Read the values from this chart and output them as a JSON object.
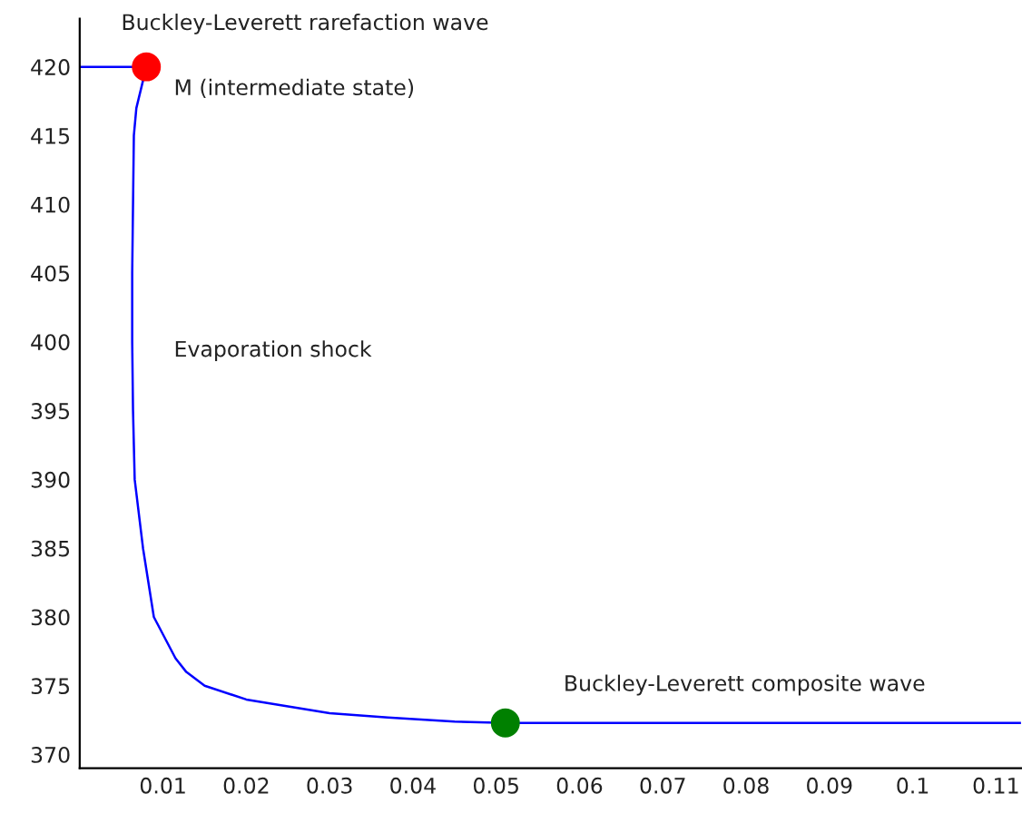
{
  "chart_data": {
    "type": "line",
    "xlim": [
      0,
      0.113
    ],
    "ylim": [
      369,
      423.5
    ],
    "xticks": [
      0.01,
      0.02,
      0.03,
      0.04,
      0.05,
      0.06,
      0.07,
      0.08,
      0.09,
      0.1,
      0.11
    ],
    "yticks": [
      370,
      375,
      380,
      385,
      390,
      395,
      400,
      405,
      410,
      415,
      420
    ],
    "grid": false,
    "legend": false,
    "series": [
      {
        "color": "#0000ff",
        "marker": "none",
        "x": [
          0,
          0.008,
          0.0068,
          0.0065,
          0.0063,
          0.0063,
          0.0064,
          0.0066,
          0.0076,
          0.0089,
          0.0115,
          0.0128,
          0.015,
          0.02,
          0.025,
          0.03,
          0.037,
          0.045,
          0.0511,
          0.113
        ],
        "values": [
          420,
          420,
          417,
          415,
          405,
          400,
          395,
          390,
          385,
          380,
          377,
          376,
          375,
          374,
          373.5,
          373,
          372.7,
          372.4,
          372.3,
          372.3
        ]
      },
      {
        "type": "scatter",
        "color": "#ff0000",
        "marker": "circle",
        "x": [
          0.008
        ],
        "values": [
          420
        ]
      },
      {
        "type": "scatter",
        "color": "#008000",
        "marker": "circle",
        "x": [
          0.0511
        ],
        "values": [
          372.3
        ]
      }
    ],
    "annotations": [
      "Buckley-Leverett rarefaction wave",
      "M (intermediate state)",
      "Evaporation shock",
      "Buckley-Leverett composite wave"
    ]
  }
}
